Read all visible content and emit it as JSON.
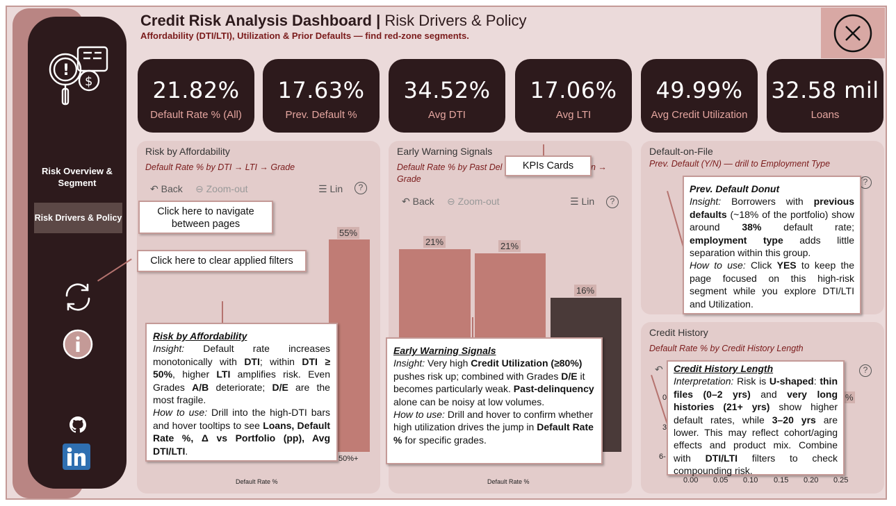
{
  "header": {
    "title_bold": "Credit Risk Analysis Dashboard |",
    "title_rest": " Risk Drivers & Policy",
    "subtitle": "Affordability (DTI/LTI), Utilization & Prior Defaults — find red-zone segments."
  },
  "sidebar": {
    "nav_overview": "Risk Overview & Segment",
    "nav_drivers": "Risk Drivers & Policy"
  },
  "kpis": [
    {
      "value": "21.82%",
      "label": "Default Rate % (All)"
    },
    {
      "value": "17.63%",
      "label": "Prev. Default %"
    },
    {
      "value": "34.52%",
      "label": "Avg DTI"
    },
    {
      "value": "17.06%",
      "label": "Avg LTI"
    },
    {
      "value": "49.99%",
      "label": "Avg Credit Utilization"
    },
    {
      "value": "32.58 mil",
      "label": "Loans"
    }
  ],
  "toolbar": {
    "back": "Back",
    "zoom_out": "Zoom-out",
    "lin": "Lin"
  },
  "panels": {
    "affordability": {
      "title": "Risk by Affordability",
      "subtitle": "Default Rate % by DTI → LTI → Grade",
      "bar_label": "55%",
      "x_label": "50%+",
      "axis_label": "Default Rate %"
    },
    "early_warning": {
      "title": "Early Warning Signals",
      "subtitle_line1": "Default Rate % by Past Del",
      "subtitle_arrow": "n →",
      "subtitle_line2": "Grade",
      "bar_labels": [
        "21%",
        "21%",
        "16%"
      ],
      "axis_label": "Default Rate %"
    },
    "default_on_file": {
      "title": "Default-on-File",
      "subtitle": "Prev. Default (Y/N) — drill to Employment Type"
    },
    "credit_history": {
      "title": "Credit History",
      "subtitle": "Default Rate % by Credit History Length",
      "ticks": [
        "0.00",
        "0.05",
        "0.10",
        "0.15",
        "0.20",
        "0.25"
      ],
      "y_ticks": [
        "0",
        "3",
        "6-"
      ],
      "pct_fragment": "%"
    }
  },
  "tips": {
    "navigate": "Click here to navigate between pages",
    "clear": "Click here to clear applied filters",
    "kpis": "KPIs Cards"
  },
  "callouts": {
    "affordability": {
      "title": "Risk by Affordability",
      "insight_label": "Insight:",
      "insight_1": " Default rate increases monotonically with ",
      "dti": "DTI",
      "insight_2": "; within ",
      "dti50": "DTI ≥ 50%",
      "insight_3": ", higher ",
      "lti": "LTI",
      "insight_4": " amplifies risk. Even Grades ",
      "ab": "A/B",
      "insight_5": " deteriorate; ",
      "de": "D/E",
      "insight_6": " are the most fragile.",
      "howto_label": "How to use:",
      "howto_1": " Drill into the high-DTI bars and hover tooltips to see ",
      "loans": "Loans, Default Rate %, Δ vs Portfolio (pp), Avg DTI/LTI",
      "howto_2": "."
    },
    "early_warning": {
      "title": "Early Warning Signals",
      "insight_label": "Insight:",
      "insight_1": " Very high ",
      "util": "Credit Utilization (≥80%)",
      "insight_2": " pushes risk up; combined with Grades ",
      "de": "D/E",
      "insight_3": " it becomes particularly weak. ",
      "past": "Past-delinquency",
      "insight_4": " alone can be noisy at low volumes.",
      "howto_label": "How to use:",
      "howto_1": " Drill and hover to confirm whether high utilization drives the jump in ",
      "dr": "Default Rate %",
      "howto_2": " for specific grades."
    },
    "prev_default": {
      "title": "Prev. Default Donut",
      "insight_label": "Insight:",
      "insight_1": " Borrowers with ",
      "prev": "previous defaults",
      "insight_2": " (~18% of the portfolio) show around ",
      "p38": "38%",
      "insight_3": " default rate; ",
      "emp": "employment type",
      "insight_4": " adds little separation within this group.",
      "howto_label": "How to use:",
      "howto_1": " Click ",
      "yes": "YES",
      "howto_2": " to keep the page focused on this high-risk segment while you explore DTI/LTI and Utilization."
    },
    "credit_history": {
      "title": "Credit History Length",
      "interp_label": "Interpretation:",
      "t1": " Risk is ",
      "ushape": "U-shaped",
      "t2": ": ",
      "thin": "thin files (0–2 yrs)",
      "t3": " and ",
      "long": "very long histories (21+ yrs)",
      "t4": " show higher default rates, while ",
      "mid": "3–20 yrs",
      "t5": " are lower. This may reflect cohort/aging effects and product mix. Combine with ",
      "dtilti": "DTI/LTI",
      "t6": " filters to check compounding risk."
    }
  },
  "colors": {
    "dark": "#2d1a1c",
    "bar_rose": "#c07c75",
    "bar_dark": "#4a3a39",
    "accent": "#7a1b1b"
  }
}
